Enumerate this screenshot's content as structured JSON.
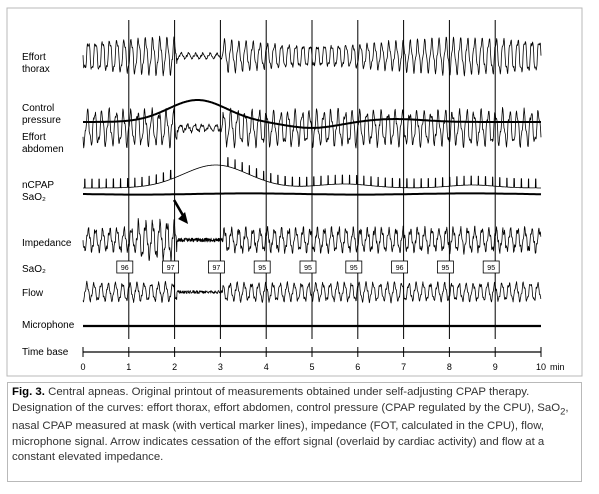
{
  "chart_data": {
    "type": "line",
    "title": "",
    "xlabel": "Time base",
    "x_unit": "min",
    "xlim": [
      0,
      10
    ],
    "x_ticks": [
      "0",
      "1",
      "2",
      "3",
      "4",
      "5",
      "6",
      "7",
      "8",
      "9",
      "10"
    ],
    "series": [
      {
        "name": "Effort thorax",
        "label_lines": [
          "Effort",
          "thorax"
        ]
      },
      {
        "name": "Control pressure",
        "label_lines": [
          "Control",
          "pressure"
        ]
      },
      {
        "name": "Effort abdomen",
        "label_lines": [
          "Effort",
          "abdomen"
        ]
      },
      {
        "name": "nCPAP SaO2",
        "label_lines": [
          "nCPAP",
          "SaO₂"
        ]
      },
      {
        "name": "Impedance",
        "label_lines": [
          "Impedance"
        ]
      },
      {
        "name": "SaO2",
        "label_lines": [
          "SaO₂"
        ]
      },
      {
        "name": "Flow",
        "label_lines": [
          "Flow"
        ]
      },
      {
        "name": "Microphone",
        "label_lines": [
          "Microphone"
        ]
      }
    ],
    "sao2_markers": [
      {
        "time": 1.0,
        "value": "96"
      },
      {
        "time": 2.0,
        "value": "97"
      },
      {
        "time": 3.0,
        "value": "97"
      },
      {
        "time": 4.0,
        "value": "95"
      },
      {
        "time": 5.0,
        "value": "95"
      },
      {
        "time": 6.0,
        "value": "95"
      },
      {
        "time": 7.0,
        "value": "96"
      },
      {
        "time": 8.0,
        "value": "95"
      },
      {
        "time": 9.0,
        "value": "95"
      }
    ],
    "central_apnea": {
      "start_min": 2.0,
      "end_min": 3.0
    },
    "grid": "vertical lines at each minute",
    "annotation": "arrow at cessation of effort signal (~2 min)"
  },
  "caption": {
    "fig_label": "Fig. 3.",
    "text_before_sub": " Central apneas. Original printout of measurements obtained under self-adjusting CPAP therapy. Designation of the curves: effort thorax, effort abdomen, control pressure (CPAP regulated by the CPU), SaO",
    "sub": "2",
    "text_after_sub": ", nasal CPAP measured at mask (with vertical marker lines), impedance (FOT, calculated in the CPU), flow, microphone signal. Arrow indicates cessation of the effort signal (overlaid by cardiac activity) and flow at a constant elevated impedance."
  }
}
